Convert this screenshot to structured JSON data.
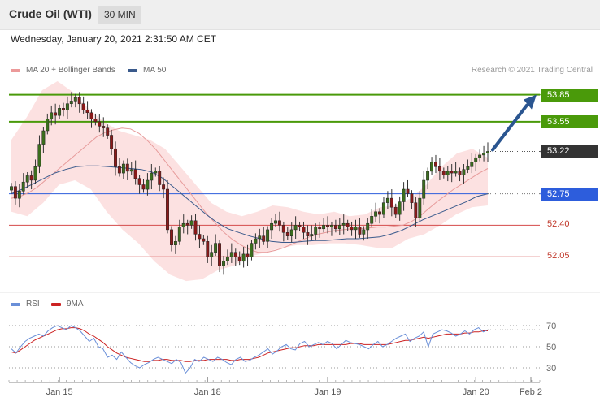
{
  "header": {
    "title": "Crude Oil (WTI)",
    "timeframe": "30 MIN"
  },
  "date": "Wednesday, January 20, 2021 2:31:50 AM CET",
  "credit": "Research © 2021 Trading Central",
  "legend": {
    "ma20": "MA 20 + Bollinger Bands",
    "ma50": "MA 50",
    "rsi": "RSI",
    "ma9": "9MA"
  },
  "colors": {
    "resistance": "#4a9a0a",
    "pivot": "#2d5ddc",
    "support": "#d44a4a",
    "candle_up": "#3b6e1e",
    "candle_down": "#8b1a1a",
    "band": "#fbdcdc",
    "ma20": "#e79b9b",
    "ma50": "#3a5a8c",
    "rsi": "#6a8fd8",
    "ma9": "#cc2222",
    "last": "#333333"
  },
  "chart_data": [
    {
      "type": "candlestick",
      "ylim": [
        51.7,
        54.0
      ],
      "levels": [
        {
          "label": "53.85",
          "value": 53.85,
          "kind": "resistance"
        },
        {
          "label": "53.55",
          "value": 53.55,
          "kind": "resistance"
        },
        {
          "label": "53.22",
          "value": 53.22,
          "kind": "last"
        },
        {
          "label": "52.75",
          "value": 52.75,
          "kind": "pivot"
        },
        {
          "label": "52.40",
          "value": 52.4,
          "kind": "support"
        },
        {
          "label": "52.05",
          "value": 52.05,
          "kind": "support"
        }
      ],
      "x_ticks": [
        "Jan 15",
        "Jan 18",
        "Jan 19",
        "Jan 20",
        "Feb 2"
      ],
      "x_tick_index": [
        12,
        49,
        79,
        116,
        129
      ],
      "close": [
        52.83,
        52.7,
        52.78,
        52.88,
        52.95,
        52.9,
        53.05,
        53.3,
        53.45,
        53.58,
        53.65,
        53.62,
        53.7,
        53.68,
        53.75,
        53.78,
        53.82,
        53.75,
        53.68,
        53.65,
        53.58,
        53.55,
        53.5,
        53.48,
        53.4,
        53.25,
        53.05,
        52.98,
        53.08,
        53.0,
        53.02,
        52.92,
        52.85,
        52.8,
        52.9,
        52.98,
        53.0,
        52.85,
        52.8,
        52.35,
        52.18,
        52.22,
        52.38,
        52.42,
        52.4,
        52.45,
        52.3,
        52.25,
        52.22,
        52.05,
        52.1,
        52.2,
        51.95,
        52.0,
        52.05,
        52.1,
        52.05,
        52.0,
        52.08,
        52.05,
        52.2,
        52.25,
        52.28,
        52.22,
        52.35,
        52.42,
        52.45,
        52.4,
        52.32,
        52.28,
        52.35,
        52.4,
        52.38,
        52.32,
        52.28,
        52.3,
        52.38,
        52.36,
        52.4,
        52.38,
        52.4,
        52.36,
        52.4,
        52.42,
        52.38,
        52.35,
        52.38,
        52.3,
        52.35,
        52.42,
        52.5,
        52.55,
        52.52,
        52.65,
        52.7,
        52.6,
        52.52,
        52.66,
        52.8,
        52.75,
        52.65,
        52.48,
        52.7,
        52.9,
        53.0,
        53.1,
        53.05,
        53.0,
        52.96,
        53.0,
        52.98,
        53.0,
        52.96,
        53.02,
        53.05,
        53.1,
        53.15,
        53.18,
        53.2,
        53.22
      ],
      "ma20": [
        52.7,
        52.72,
        52.76,
        52.82,
        52.9,
        52.98,
        53.06,
        53.14,
        53.22,
        53.3,
        53.38,
        53.43,
        53.46,
        53.48,
        53.47,
        53.42,
        53.34,
        53.24,
        53.12,
        53.0,
        52.88,
        52.76,
        52.64,
        52.52,
        52.42,
        52.32,
        52.24,
        52.18,
        52.13,
        52.1,
        52.1,
        52.12,
        52.15,
        52.19,
        52.23,
        52.27,
        52.3,
        52.32,
        52.34,
        52.35,
        52.36,
        52.36,
        52.37,
        52.38,
        52.38,
        52.39,
        52.4,
        52.44,
        52.5,
        52.58,
        52.66,
        52.73,
        52.8,
        52.86,
        52.92,
        52.98,
        53.03
      ],
      "ma50": [
        52.75,
        52.8,
        52.86,
        52.92,
        52.98,
        53.02,
        53.05,
        53.06,
        53.06,
        53.05,
        53.04,
        53.03,
        53.02,
        52.99,
        52.92,
        52.82,
        52.72,
        52.62,
        52.52,
        52.43,
        52.36,
        52.32,
        52.28,
        52.25,
        52.22,
        52.21,
        52.21,
        52.22,
        52.23,
        52.23,
        52.24,
        52.25,
        52.25,
        52.26,
        52.27,
        52.3,
        52.34,
        52.4,
        52.46,
        52.51,
        52.56,
        52.61,
        52.66,
        52.72,
        52.75
      ],
      "band_upper": [
        53.35,
        53.6,
        53.9,
        54.0,
        53.88,
        53.7,
        53.55,
        53.45,
        53.4,
        53.35,
        53.25,
        53.05,
        52.85,
        52.65,
        52.55,
        52.5,
        52.55,
        52.62,
        52.6,
        52.55,
        52.52,
        52.55,
        52.5,
        52.52,
        52.6,
        52.62,
        52.7,
        52.85,
        53.05,
        53.2,
        53.25,
        53.15
      ],
      "band_lower": [
        52.55,
        52.5,
        52.65,
        52.85,
        52.9,
        52.8,
        52.55,
        52.35,
        52.2,
        52.0,
        51.85,
        51.78,
        51.8,
        51.9,
        51.95,
        52.05,
        52.1,
        52.15,
        52.18,
        52.18,
        52.2,
        52.2,
        52.18,
        52.15,
        52.15,
        52.25,
        52.3,
        52.4,
        52.52,
        52.6,
        52.62
      ]
    },
    {
      "type": "line",
      "ylim": [
        20,
        80
      ],
      "y_ticks": [
        "70",
        "50",
        "30"
      ],
      "rsi": [
        48,
        44,
        50,
        55,
        58,
        60,
        62,
        60,
        65,
        68,
        70,
        68,
        66,
        70,
        68,
        65,
        60,
        55,
        58,
        50,
        48,
        40,
        42,
        38,
        45,
        40,
        35,
        32,
        30,
        33,
        35,
        38,
        40,
        38,
        36,
        34,
        38,
        35,
        25,
        30,
        38,
        36,
        40,
        38,
        36,
        40,
        38,
        35,
        33,
        38,
        40,
        36,
        37,
        40,
        42,
        45,
        48,
        43,
        46,
        50,
        52,
        48,
        47,
        53,
        55,
        50,
        52,
        54,
        52,
        55,
        53,
        48,
        52,
        56,
        54,
        53,
        52,
        50,
        48,
        52,
        55,
        50,
        52,
        55,
        58,
        60,
        62,
        55,
        58,
        60,
        64,
        50,
        62,
        64,
        66,
        65,
        63,
        60,
        62,
        65,
        62,
        66,
        68,
        64,
        66
      ],
      "ma9": [
        45,
        44,
        47,
        50,
        53,
        56,
        58,
        60,
        62,
        64,
        66,
        67,
        67,
        68,
        68,
        67,
        65,
        62,
        60,
        57,
        54,
        50,
        47,
        44,
        42,
        40,
        39,
        38,
        37,
        36,
        36,
        37,
        37,
        38,
        38,
        37,
        37,
        37,
        36,
        36,
        37,
        37,
        37,
        38,
        38,
        38,
        38,
        38,
        37,
        37,
        38,
        38,
        38,
        39,
        40,
        42,
        44,
        45,
        46,
        47,
        48,
        49,
        49,
        50,
        51,
        51,
        51,
        52,
        52,
        52,
        52,
        52,
        52,
        52,
        53,
        53,
        53,
        52,
        52,
        52,
        52,
        52,
        52,
        53,
        54,
        55,
        56,
        56,
        57,
        58,
        59,
        58,
        59,
        60,
        61,
        62,
        62,
        62,
        62,
        63,
        63,
        64,
        64,
        65,
        65
      ]
    }
  ]
}
